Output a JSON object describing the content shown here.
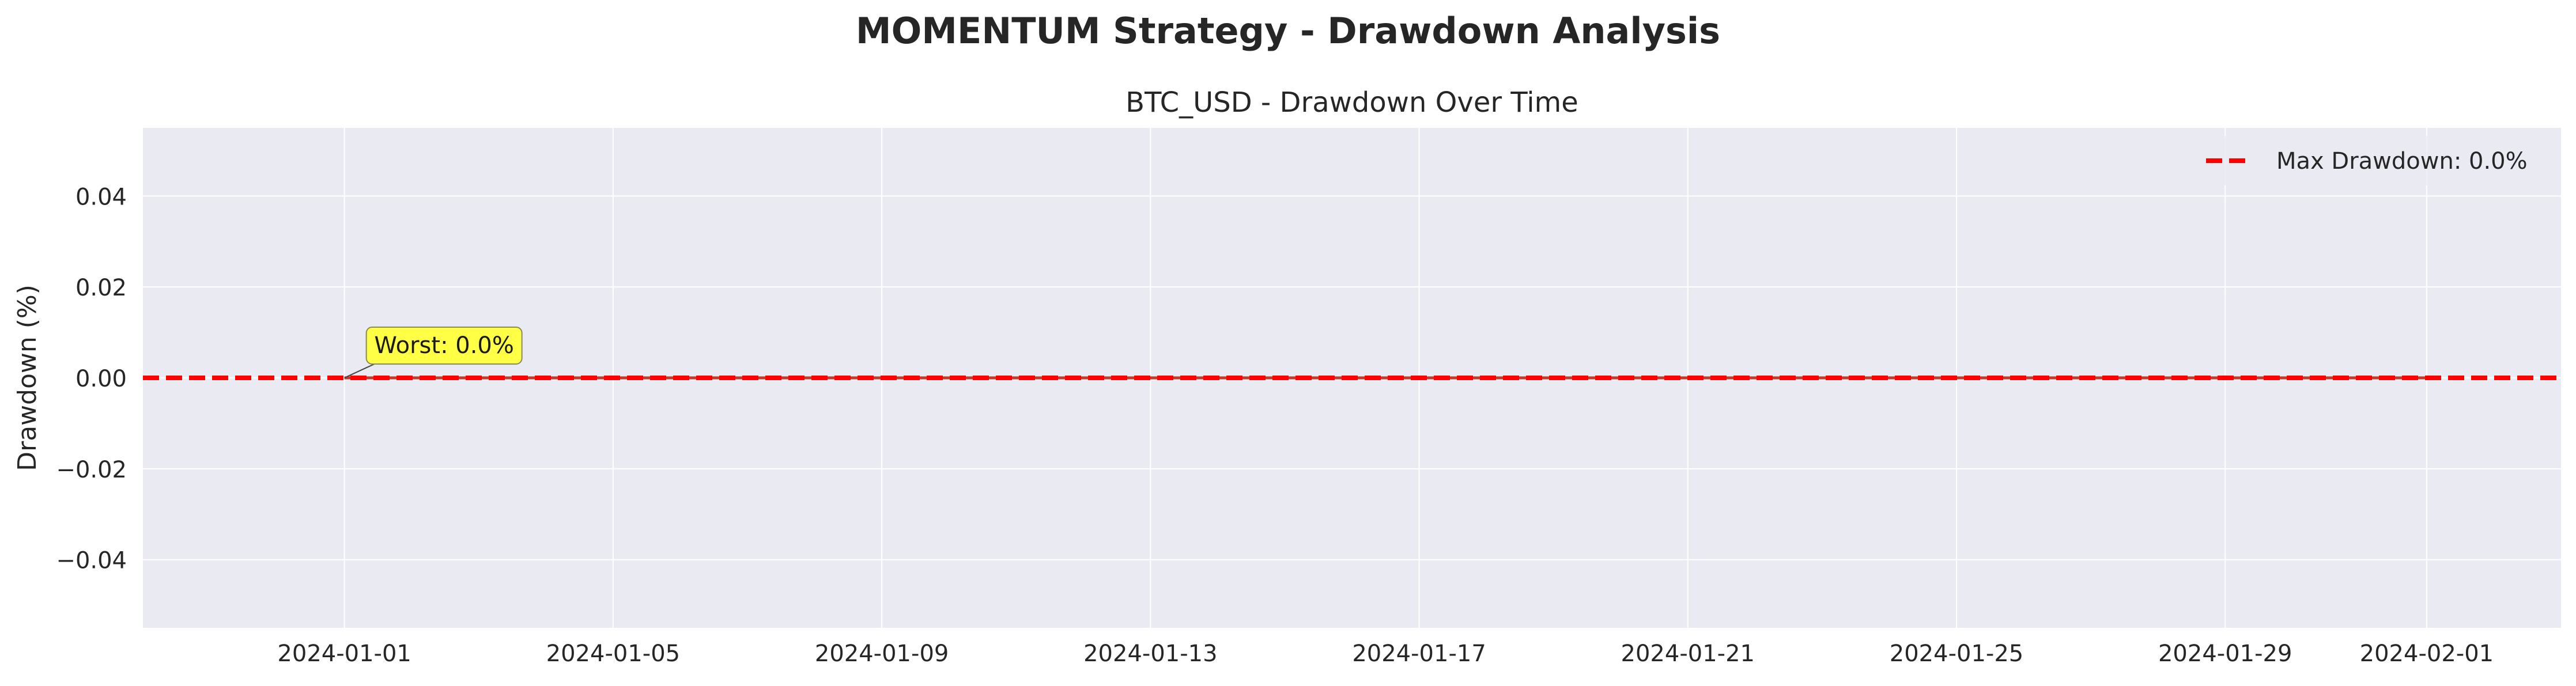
{
  "figure": {
    "suptitle": "MOMENTUM Strategy - Drawdown Analysis"
  },
  "chart_data": {
    "type": "area",
    "title": "BTC_USD - Drawdown Over Time",
    "xlabel": "",
    "ylabel": "Drawdown (%)",
    "x_type": "date",
    "xlim": [
      "2023-12-29",
      "2024-02-03"
    ],
    "ylim": [
      -0.055,
      0.055
    ],
    "x_ticks": [
      "2024-01-01",
      "2024-01-05",
      "2024-01-09",
      "2024-01-13",
      "2024-01-17",
      "2024-01-21",
      "2024-01-25",
      "2024-01-29",
      "2024-02-01"
    ],
    "y_ticks": [
      {
        "value": 0.04,
        "label": "0.04"
      },
      {
        "value": 0.02,
        "label": "0.02"
      },
      {
        "value": 0.0,
        "label": "0.00"
      },
      {
        "value": -0.02,
        "label": "−0.02"
      },
      {
        "value": -0.04,
        "label": "−0.04"
      }
    ],
    "grid": true,
    "legend_position": "top-right",
    "series": [
      {
        "name": "",
        "x": [
          "2024-01-01",
          "2024-02-01"
        ],
        "values": [
          0.0,
          0.0
        ],
        "color": "#c0392b"
      }
    ],
    "reference_lines": [
      {
        "orientation": "horizontal",
        "y": 0.0,
        "label": "Max Drawdown: 0.0%",
        "color": "#ff0000",
        "style": "dashed"
      }
    ],
    "annotations": [
      {
        "text": "Worst: 0.0%",
        "x": "2024-01-01",
        "y": 0.0,
        "background": "#ffff45"
      }
    ],
    "colors": {
      "plot_background": "#eaeaf2",
      "grid": "#ffffff",
      "text": "#262626"
    }
  }
}
